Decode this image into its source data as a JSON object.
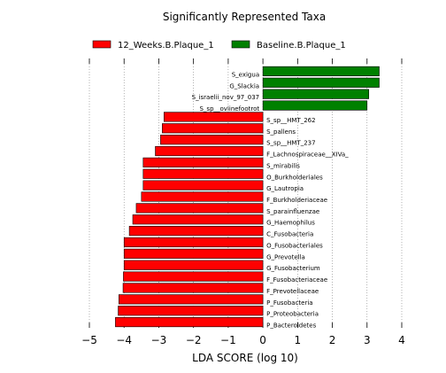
{
  "chart_data": {
    "type": "bar",
    "orientation": "horizontal",
    "title": "Significantly Represented Taxa",
    "xlabel": "LDA SCORE (log 10)",
    "ylabel": "",
    "xlim": [
      -5,
      4
    ],
    "xticks": [
      -5,
      -4,
      -3,
      -2,
      -1,
      0,
      1,
      2,
      3,
      4
    ],
    "xtick_labels": [
      "−5",
      "−4",
      "−3",
      "−2",
      "−1",
      "0",
      "1",
      "2",
      "3",
      "4"
    ],
    "grid": "vertical dotted",
    "legend_position": "top",
    "series": [
      {
        "name": "12_Weeks.B.Plaque_1",
        "color": "#ff0000"
      },
      {
        "name": "Baseline.B.Plaque_1",
        "color": "#008000"
      }
    ],
    "categories": [
      "S_exigua",
      "G_Slackia",
      "S_israelii_nov_97_037",
      "S_sp__oviinefootrot",
      "S_sp__HMT_262",
      "S_pallens",
      "S_sp__HMT_237",
      "F_Lachnospiraceae__XIVa_",
      "S_mirabilis",
      "O_Burkholderiales",
      "G_Lautropia",
      "F_Burkholderiaceae",
      "S_parainfluenzae",
      "G_Haemophilus",
      "C_Fusobacteria",
      "O_Fusobacteriales",
      "G_Prevotella",
      "G_Fusobacterium",
      "F_Fusobacteriaceae",
      "F_Prevotellaceae",
      "P_Fusobacteria",
      "P_Proteobacteria",
      "P_Bacteroidetes"
    ],
    "values": [
      3.35,
      3.35,
      3.05,
      3.0,
      -2.85,
      -2.9,
      -2.95,
      -3.1,
      -3.45,
      -3.45,
      -3.45,
      -3.5,
      -3.65,
      -3.75,
      -3.85,
      -4.0,
      -4.0,
      -4.0,
      -4.02,
      -4.03,
      -4.15,
      -4.17,
      -4.25
    ],
    "series_index": [
      1,
      1,
      1,
      1,
      0,
      0,
      0,
      0,
      0,
      0,
      0,
      0,
      0,
      0,
      0,
      0,
      0,
      0,
      0,
      0,
      0,
      0,
      0
    ]
  }
}
